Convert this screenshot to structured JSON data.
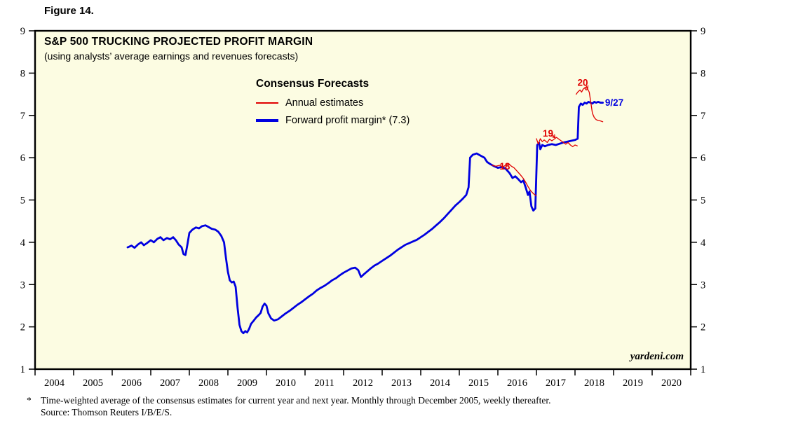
{
  "figure": {
    "label": "Figure 14."
  },
  "chart_data": {
    "type": "line",
    "title": "S&P 500 TRUCKING PROJECTED PROFIT MARGIN",
    "subtitle": "(using analysts’ average earnings and revenues forecasts)",
    "legend": {
      "heading": "Consensus Forecasts",
      "position": "top-center",
      "items": [
        {
          "label": "Annual estimates",
          "color": "#E00000",
          "style": "thin"
        },
        {
          "label": "Forward profit margin* (7.3)",
          "color": "#0000E0",
          "style": "thick"
        }
      ]
    },
    "watermark": "yardeni.com",
    "x_range": [
      2004,
      2021
    ],
    "y_range": [
      1,
      9
    ],
    "x_tick_labels": [
      "2004",
      "2005",
      "2006",
      "2007",
      "2008",
      "2009",
      "2010",
      "2011",
      "2012",
      "2013",
      "2014",
      "2015",
      "2016",
      "2017",
      "2018",
      "2019",
      "2020"
    ],
    "y_ticks": [
      1,
      2,
      3,
      4,
      5,
      6,
      7,
      8,
      9
    ],
    "grid": false,
    "colors": {
      "plot_background": "#FCFCE2",
      "frame": "#000000"
    },
    "series": [
      {
        "id": "forward-profit-margin",
        "name": "Forward profit margin",
        "color": "#0000E0",
        "width": 2.8,
        "points": [
          [
            2006.4,
            3.88
          ],
          [
            2006.5,
            3.92
          ],
          [
            2006.58,
            3.87
          ],
          [
            2006.67,
            3.95
          ],
          [
            2006.75,
            4.0
          ],
          [
            2006.82,
            3.93
          ],
          [
            2006.9,
            3.98
          ],
          [
            2007.0,
            4.05
          ],
          [
            2007.08,
            4.0
          ],
          [
            2007.17,
            4.08
          ],
          [
            2007.25,
            4.12
          ],
          [
            2007.33,
            4.05
          ],
          [
            2007.42,
            4.1
          ],
          [
            2007.5,
            4.07
          ],
          [
            2007.58,
            4.12
          ],
          [
            2007.65,
            4.05
          ],
          [
            2007.72,
            3.95
          ],
          [
            2007.8,
            3.88
          ],
          [
            2007.85,
            3.72
          ],
          [
            2007.9,
            3.7
          ],
          [
            2007.95,
            3.95
          ],
          [
            2008.0,
            4.22
          ],
          [
            2008.08,
            4.3
          ],
          [
            2008.17,
            4.35
          ],
          [
            2008.25,
            4.33
          ],
          [
            2008.33,
            4.38
          ],
          [
            2008.42,
            4.4
          ],
          [
            2008.5,
            4.36
          ],
          [
            2008.58,
            4.32
          ],
          [
            2008.67,
            4.3
          ],
          [
            2008.75,
            4.25
          ],
          [
            2008.83,
            4.15
          ],
          [
            2008.9,
            4.0
          ],
          [
            2008.95,
            3.62
          ],
          [
            2009.0,
            3.3
          ],
          [
            2009.05,
            3.1
          ],
          [
            2009.1,
            3.05
          ],
          [
            2009.15,
            3.07
          ],
          [
            2009.2,
            2.95
          ],
          [
            2009.25,
            2.45
          ],
          [
            2009.3,
            2.05
          ],
          [
            2009.35,
            1.9
          ],
          [
            2009.4,
            1.85
          ],
          [
            2009.45,
            1.9
          ],
          [
            2009.5,
            1.87
          ],
          [
            2009.55,
            1.95
          ],
          [
            2009.6,
            2.07
          ],
          [
            2009.67,
            2.15
          ],
          [
            2009.73,
            2.22
          ],
          [
            2009.8,
            2.28
          ],
          [
            2009.85,
            2.33
          ],
          [
            2009.9,
            2.48
          ],
          [
            2009.95,
            2.55
          ],
          [
            2010.0,
            2.5
          ],
          [
            2010.05,
            2.32
          ],
          [
            2010.12,
            2.2
          ],
          [
            2010.2,
            2.15
          ],
          [
            2010.3,
            2.18
          ],
          [
            2010.4,
            2.25
          ],
          [
            2010.5,
            2.32
          ],
          [
            2010.6,
            2.38
          ],
          [
            2010.7,
            2.45
          ],
          [
            2010.8,
            2.52
          ],
          [
            2010.9,
            2.58
          ],
          [
            2011.0,
            2.65
          ],
          [
            2011.1,
            2.72
          ],
          [
            2011.2,
            2.78
          ],
          [
            2011.3,
            2.86
          ],
          [
            2011.4,
            2.92
          ],
          [
            2011.5,
            2.97
          ],
          [
            2011.6,
            3.03
          ],
          [
            2011.7,
            3.1
          ],
          [
            2011.8,
            3.15
          ],
          [
            2011.9,
            3.22
          ],
          [
            2012.0,
            3.28
          ],
          [
            2012.1,
            3.33
          ],
          [
            2012.2,
            3.38
          ],
          [
            2012.3,
            3.4
          ],
          [
            2012.38,
            3.34
          ],
          [
            2012.45,
            3.18
          ],
          [
            2012.52,
            3.24
          ],
          [
            2012.6,
            3.3
          ],
          [
            2012.7,
            3.38
          ],
          [
            2012.8,
            3.45
          ],
          [
            2012.9,
            3.5
          ],
          [
            2013.0,
            3.56
          ],
          [
            2013.1,
            3.62
          ],
          [
            2013.2,
            3.68
          ],
          [
            2013.3,
            3.75
          ],
          [
            2013.4,
            3.82
          ],
          [
            2013.5,
            3.88
          ],
          [
            2013.6,
            3.94
          ],
          [
            2013.7,
            3.98
          ],
          [
            2013.8,
            4.02
          ],
          [
            2013.9,
            4.06
          ],
          [
            2014.0,
            4.12
          ],
          [
            2014.1,
            4.18
          ],
          [
            2014.2,
            4.25
          ],
          [
            2014.3,
            4.32
          ],
          [
            2014.4,
            4.4
          ],
          [
            2014.5,
            4.48
          ],
          [
            2014.6,
            4.57
          ],
          [
            2014.7,
            4.67
          ],
          [
            2014.8,
            4.77
          ],
          [
            2014.9,
            4.87
          ],
          [
            2015.0,
            4.95
          ],
          [
            2015.1,
            5.04
          ],
          [
            2015.18,
            5.12
          ],
          [
            2015.24,
            5.3
          ],
          [
            2015.28,
            6.0
          ],
          [
            2015.35,
            6.07
          ],
          [
            2015.45,
            6.1
          ],
          [
            2015.55,
            6.05
          ],
          [
            2015.65,
            6.0
          ],
          [
            2015.72,
            5.9
          ],
          [
            2015.8,
            5.85
          ],
          [
            2015.9,
            5.8
          ],
          [
            2016.0,
            5.76
          ],
          [
            2016.1,
            5.78
          ],
          [
            2016.2,
            5.74
          ],
          [
            2016.3,
            5.64
          ],
          [
            2016.38,
            5.52
          ],
          [
            2016.45,
            5.56
          ],
          [
            2016.52,
            5.5
          ],
          [
            2016.6,
            5.42
          ],
          [
            2016.66,
            5.46
          ],
          [
            2016.72,
            5.3
          ],
          [
            2016.78,
            5.12
          ],
          [
            2016.82,
            5.2
          ],
          [
            2016.87,
            4.85
          ],
          [
            2016.92,
            4.75
          ],
          [
            2016.97,
            4.8
          ],
          [
            2017.02,
            6.3
          ],
          [
            2017.07,
            6.35
          ],
          [
            2017.1,
            6.2
          ],
          [
            2017.15,
            6.3
          ],
          [
            2017.22,
            6.27
          ],
          [
            2017.3,
            6.3
          ],
          [
            2017.4,
            6.32
          ],
          [
            2017.5,
            6.3
          ],
          [
            2017.6,
            6.33
          ],
          [
            2017.7,
            6.36
          ],
          [
            2017.8,
            6.38
          ],
          [
            2017.9,
            6.4
          ],
          [
            2018.0,
            6.42
          ],
          [
            2018.07,
            6.45
          ],
          [
            2018.1,
            7.2
          ],
          [
            2018.15,
            7.28
          ],
          [
            2018.2,
            7.25
          ],
          [
            2018.25,
            7.3
          ],
          [
            2018.3,
            7.28
          ],
          [
            2018.35,
            7.32
          ],
          [
            2018.4,
            7.3
          ],
          [
            2018.45,
            7.28
          ],
          [
            2018.5,
            7.32
          ],
          [
            2018.55,
            7.3
          ],
          [
            2018.6,
            7.32
          ],
          [
            2018.66,
            7.3
          ],
          [
            2018.72,
            7.3
          ]
        ]
      },
      {
        "id": "annual-estimate-2018",
        "name": "Annual estimates (2018)",
        "color": "#E00000",
        "width": 1.3,
        "points": [
          [
            2015.85,
            5.82
          ],
          [
            2015.95,
            5.8
          ],
          [
            2016.05,
            5.82
          ],
          [
            2016.12,
            5.78
          ],
          [
            2016.2,
            5.82
          ],
          [
            2016.28,
            5.86
          ],
          [
            2016.35,
            5.8
          ],
          [
            2016.42,
            5.76
          ],
          [
            2016.5,
            5.68
          ],
          [
            2016.58,
            5.6
          ],
          [
            2016.65,
            5.52
          ],
          [
            2016.72,
            5.42
          ],
          [
            2016.78,
            5.32
          ],
          [
            2016.85,
            5.22
          ],
          [
            2016.92,
            5.15
          ],
          [
            2016.99,
            5.1
          ]
        ]
      },
      {
        "id": "annual-estimate-2019",
        "name": "Annual estimates (2019)",
        "color": "#E00000",
        "width": 1.3,
        "points": [
          [
            2017.0,
            6.45
          ],
          [
            2017.05,
            6.32
          ],
          [
            2017.1,
            6.45
          ],
          [
            2017.15,
            6.38
          ],
          [
            2017.2,
            6.42
          ],
          [
            2017.28,
            6.36
          ],
          [
            2017.34,
            6.44
          ],
          [
            2017.4,
            6.4
          ],
          [
            2017.46,
            6.44
          ],
          [
            2017.52,
            6.48
          ],
          [
            2017.58,
            6.44
          ],
          [
            2017.64,
            6.4
          ],
          [
            2017.7,
            6.36
          ],
          [
            2017.76,
            6.32
          ],
          [
            2017.82,
            6.36
          ],
          [
            2017.88,
            6.3
          ],
          [
            2017.94,
            6.26
          ],
          [
            2018.0,
            6.3
          ],
          [
            2018.06,
            6.28
          ]
        ]
      },
      {
        "id": "annual-estimate-2020",
        "name": "Annual estimates (2020)",
        "color": "#E00000",
        "width": 1.3,
        "points": [
          [
            2018.03,
            7.5
          ],
          [
            2018.08,
            7.56
          ],
          [
            2018.13,
            7.6
          ],
          [
            2018.17,
            7.55
          ],
          [
            2018.21,
            7.62
          ],
          [
            2018.25,
            7.65
          ],
          [
            2018.29,
            7.6
          ],
          [
            2018.33,
            7.62
          ],
          [
            2018.37,
            7.55
          ],
          [
            2018.41,
            7.3
          ],
          [
            2018.45,
            7.05
          ],
          [
            2018.5,
            6.95
          ],
          [
            2018.55,
            6.9
          ],
          [
            2018.6,
            6.88
          ],
          [
            2018.66,
            6.87
          ],
          [
            2018.72,
            6.85
          ]
        ]
      }
    ],
    "annotations": [
      {
        "text": "18",
        "x": 2016.18,
        "y": 5.72,
        "color": "#E00000"
      },
      {
        "text": "19",
        "x": 2017.3,
        "y": 6.5,
        "color": "#E00000",
        "arrow": [
          2017.4,
          6.56,
          2017.48,
          6.47
        ]
      },
      {
        "text": "20",
        "x": 2018.2,
        "y": 7.7,
        "color": "#E00000",
        "arrow": [
          2018.28,
          7.72,
          2018.33,
          7.63
        ]
      },
      {
        "text": "9/27",
        "x": 2018.78,
        "y": 7.23,
        "color": "#0000E0",
        "anchor": "start"
      }
    ]
  },
  "footnote": {
    "marker": "*",
    "line1": "Time-weighted average of the consensus estimates for current year and next year. Monthly through December 2005, weekly thereafter.",
    "line2": "Source: Thomson Reuters I/B/E/S."
  }
}
